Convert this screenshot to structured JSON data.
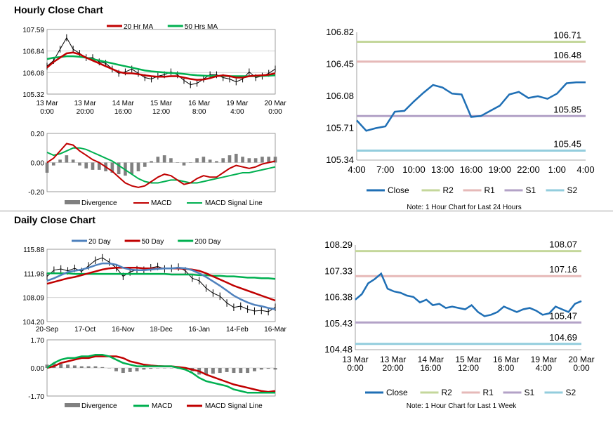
{
  "sections": {
    "hourly_title": "Hourly Close Chart",
    "daily_title": "Daily Close Chart"
  },
  "chart_data": [
    {
      "id": "hourly_price",
      "type": "line",
      "title": "",
      "legend": [
        "20 Hr MA",
        "50 Hrs MA"
      ],
      "legend_position": "top",
      "colors": {
        "price": "#000000",
        "ma20": "#c00000",
        "ma50": "#00b050"
      },
      "yticks": [
        "107.59",
        "106.84",
        "106.08",
        "105.32"
      ],
      "ylim": [
        105.32,
        107.59
      ],
      "xticks": [
        [
          "13 Mar",
          "0:00"
        ],
        [
          "13 Mar",
          "20:00"
        ],
        [
          "14 Mar",
          "16:00"
        ],
        [
          "15 Mar",
          "12:00"
        ],
        [
          "16 Mar",
          "8:00"
        ],
        [
          "19 Mar",
          "4:00"
        ],
        [
          "20 Mar",
          "0:00"
        ]
      ],
      "series": [
        {
          "name": "Close",
          "values": [
            106.3,
            106.5,
            106.9,
            107.3,
            106.9,
            106.75,
            106.6,
            106.6,
            106.45,
            106.4,
            106.2,
            106.05,
            106.1,
            106.2,
            106.05,
            105.9,
            105.85,
            105.95,
            106.0,
            106.1,
            106.0,
            105.8,
            105.65,
            105.7,
            105.85,
            106.0,
            106.0,
            105.9,
            105.85,
            105.75,
            105.85,
            106.1,
            105.9,
            105.95,
            106.05,
            106.2
          ]
        },
        {
          "name": "20 Hr MA",
          "values": [
            106.25,
            106.45,
            106.6,
            106.75,
            106.78,
            106.72,
            106.6,
            106.5,
            106.4,
            106.3,
            106.2,
            106.1,
            106.05,
            106.05,
            106.02,
            105.98,
            105.95,
            105.93,
            105.93,
            105.95,
            105.95,
            105.9,
            105.85,
            105.82,
            105.83,
            105.88,
            105.95,
            105.98,
            105.95,
            105.9,
            105.9,
            105.95,
            105.97,
            105.98,
            106.0,
            106.05
          ]
        },
        {
          "name": "50 Hrs MA",
          "values": [
            106.55,
            106.6,
            106.62,
            106.65,
            106.65,
            106.63,
            106.6,
            106.55,
            106.5,
            106.45,
            106.4,
            106.35,
            106.3,
            106.25,
            106.2,
            106.15,
            106.12,
            106.1,
            106.08,
            106.06,
            106.05,
            106.03,
            106.0,
            105.98,
            105.97,
            105.96,
            105.96,
            105.96,
            105.95,
            105.95,
            105.95,
            105.95,
            105.95,
            105.96,
            105.97,
            105.98
          ]
        }
      ]
    },
    {
      "id": "hourly_macd",
      "type": "line",
      "legend": [
        "Divergence",
        "MACD",
        "MACD Signal Line"
      ],
      "colors": {
        "div": "#808080",
        "macd": "#c00000",
        "signal": "#00b050"
      },
      "yticks": [
        "0.20",
        "0.00",
        "-0.20"
      ],
      "ylim": [
        -0.2,
        0.2
      ],
      "series": [
        {
          "name": "MACD",
          "values": [
            0.0,
            0.03,
            0.08,
            0.13,
            0.12,
            0.08,
            0.05,
            0.02,
            0.0,
            -0.03,
            -0.06,
            -0.1,
            -0.14,
            -0.16,
            -0.17,
            -0.16,
            -0.13,
            -0.1,
            -0.08,
            -0.09,
            -0.12,
            -0.15,
            -0.14,
            -0.11,
            -0.09,
            -0.1,
            -0.1,
            -0.07,
            -0.04,
            -0.02,
            -0.03,
            -0.04,
            -0.03,
            -0.01,
            0.0,
            0.01
          ]
        },
        {
          "name": "MACD Signal Line",
          "values": [
            0.07,
            0.05,
            0.06,
            0.08,
            0.1,
            0.1,
            0.09,
            0.07,
            0.05,
            0.03,
            0.01,
            -0.02,
            -0.05,
            -0.08,
            -0.11,
            -0.13,
            -0.14,
            -0.14,
            -0.13,
            -0.12,
            -0.12,
            -0.13,
            -0.14,
            -0.14,
            -0.13,
            -0.12,
            -0.11,
            -0.1,
            -0.09,
            -0.08,
            -0.07,
            -0.07,
            -0.06,
            -0.05,
            -0.04,
            -0.03
          ]
        },
        {
          "name": "Divergence",
          "values": [
            -0.07,
            -0.02,
            0.02,
            0.05,
            0.02,
            -0.02,
            -0.04,
            -0.05,
            -0.05,
            -0.06,
            -0.07,
            -0.08,
            -0.09,
            -0.08,
            -0.06,
            -0.03,
            0.01,
            0.04,
            0.05,
            0.03,
            0.0,
            -0.02,
            0.0,
            0.03,
            0.04,
            0.02,
            0.01,
            0.03,
            0.05,
            0.06,
            0.04,
            0.03,
            0.03,
            0.04,
            0.04,
            0.04
          ]
        }
      ]
    },
    {
      "id": "hourly_levels",
      "type": "line",
      "yticks": [
        "106.82",
        "106.45",
        "106.08",
        "105.71",
        "105.34"
      ],
      "ylim": [
        105.34,
        106.82
      ],
      "xticks": [
        "4:00",
        "7:00",
        "10:00",
        "13:00",
        "16:00",
        "19:00",
        "22:00",
        "1:00",
        "4:00"
      ],
      "levels": [
        {
          "name": "R2",
          "value": 106.71,
          "label": "106.71",
          "color": "#c4d79b"
        },
        {
          "name": "R1",
          "value": 106.48,
          "label": "106.48",
          "color": "#e6b9b8"
        },
        {
          "name": "S1",
          "value": 105.85,
          "label": "105.85",
          "color": "#b3a2c7"
        },
        {
          "name": "S2",
          "value": 105.45,
          "label": "105.45",
          "color": "#93cddd"
        }
      ],
      "series": [
        {
          "name": "Close",
          "color": "#1f6fb5",
          "values": [
            105.8,
            105.68,
            105.71,
            105.73,
            105.9,
            105.91,
            106.02,
            106.12,
            106.21,
            106.18,
            106.11,
            106.1,
            105.84,
            105.85,
            105.91,
            105.97,
            106.1,
            106.13,
            106.06,
            106.08,
            106.05,
            106.11,
            106.23,
            106.24,
            106.24
          ]
        }
      ],
      "legend": [
        "Close",
        "R2",
        "R1",
        "S1",
        "S2"
      ],
      "note": "Note: 1 Hour Chart for Last 24 Hours"
    },
    {
      "id": "daily_price",
      "type": "line",
      "legend": [
        "20 Day",
        "50 Day",
        "200 Day"
      ],
      "legend_position": "top",
      "colors": {
        "price": "#000000",
        "ma20": "#4f81bd",
        "ma50": "#c00000",
        "ma200": "#00b050"
      },
      "yticks": [
        "115.88",
        "111.98",
        "108.09",
        "104.20"
      ],
      "ylim": [
        104.2,
        115.88
      ],
      "xticks": [
        "20-Sep",
        "17-Oct",
        "16-Nov",
        "18-Dec",
        "16-Jan",
        "14-Feb",
        "16-Mar"
      ],
      "series": [
        {
          "name": "Close",
          "values": [
            111.5,
            112.5,
            112.7,
            112.4,
            112.8,
            112.3,
            113.2,
            114.1,
            114.5,
            113.8,
            112.9,
            111.5,
            112.2,
            112.6,
            112.5,
            112.9,
            113.1,
            112.7,
            112.8,
            113.0,
            112.4,
            111.2,
            110.8,
            109.6,
            108.8,
            108.3,
            107.2,
            106.5,
            106.7,
            106.2,
            105.9,
            106.0,
            105.8,
            106.5
          ]
        },
        {
          "name": "20 Day",
          "values": [
            110.8,
            111.2,
            111.7,
            112.2,
            112.4,
            112.6,
            112.9,
            113.3,
            113.6,
            113.6,
            113.4,
            112.9,
            112.6,
            112.5,
            112.5,
            112.6,
            112.7,
            112.8,
            112.8,
            112.9,
            112.8,
            112.5,
            112.0,
            111.4,
            110.7,
            110.0,
            109.2,
            108.4,
            107.8,
            107.3,
            106.9,
            106.7,
            106.4,
            106.2
          ]
        },
        {
          "name": "50 Day",
          "values": [
            110.3,
            110.6,
            110.9,
            111.2,
            111.4,
            111.7,
            112.0,
            112.3,
            112.6,
            112.8,
            112.9,
            112.9,
            112.9,
            112.9,
            112.8,
            112.8,
            112.8,
            112.8,
            112.8,
            112.8,
            112.7,
            112.6,
            112.4,
            112.0,
            111.5,
            111.0,
            110.5,
            110.0,
            109.6,
            109.2,
            108.8,
            108.4,
            108.0,
            107.6
          ]
        },
        {
          "name": "200 Day",
          "values": [
            112.0,
            112.0,
            112.0,
            112.0,
            111.9,
            111.9,
            111.9,
            111.9,
            111.9,
            111.9,
            111.9,
            111.9,
            111.9,
            111.9,
            111.9,
            111.9,
            111.9,
            111.9,
            111.8,
            111.8,
            111.8,
            111.8,
            111.7,
            111.7,
            111.6,
            111.6,
            111.5,
            111.5,
            111.4,
            111.3,
            111.3,
            111.2,
            111.2,
            111.1
          ]
        }
      ]
    },
    {
      "id": "daily_macd",
      "type": "line",
      "legend": [
        "Divergence",
        "MACD",
        "MACD Signal Line"
      ],
      "colors": {
        "div": "#808080",
        "macd": "#00b050",
        "signal": "#c00000"
      },
      "yticks": [
        "1.70",
        "0.00",
        "-1.70"
      ],
      "ylim": [
        -1.7,
        1.7
      ],
      "series": [
        {
          "name": "MACD",
          "values": [
            0.0,
            0.3,
            0.5,
            0.6,
            0.6,
            0.7,
            0.7,
            0.8,
            0.8,
            0.7,
            0.5,
            0.3,
            0.2,
            0.1,
            0.1,
            0.1,
            0.1,
            0.1,
            0.1,
            0.0,
            -0.1,
            -0.3,
            -0.6,
            -0.8,
            -0.9,
            -1.0,
            -1.1,
            -1.3,
            -1.4,
            -1.5,
            -1.5,
            -1.5,
            -1.5,
            -1.5
          ]
        },
        {
          "name": "MACD Signal Line",
          "values": [
            0.0,
            0.1,
            0.3,
            0.4,
            0.5,
            0.6,
            0.6,
            0.7,
            0.7,
            0.7,
            0.7,
            0.6,
            0.4,
            0.3,
            0.2,
            0.15,
            0.12,
            0.1,
            0.1,
            0.05,
            0.0,
            -0.1,
            -0.2,
            -0.4,
            -0.55,
            -0.7,
            -0.85,
            -1.0,
            -1.1,
            -1.2,
            -1.3,
            -1.4,
            -1.45,
            -1.4
          ]
        },
        {
          "name": "Divergence",
          "values": [
            0.2,
            0.3,
            0.25,
            0.2,
            0.15,
            0.1,
            0.1,
            0.1,
            0.05,
            0.0,
            -0.2,
            -0.3,
            -0.25,
            -0.2,
            -0.1,
            -0.05,
            -0.02,
            0.0,
            0.0,
            -0.05,
            -0.1,
            -0.2,
            -0.4,
            -0.4,
            -0.35,
            -0.3,
            -0.25,
            -0.3,
            -0.3,
            -0.3,
            -0.2,
            -0.1,
            -0.05,
            -0.1
          ]
        }
      ]
    },
    {
      "id": "daily_levels",
      "type": "line",
      "yticks": [
        "108.29",
        "107.33",
        "106.38",
        "105.43",
        "104.48"
      ],
      "ylim": [
        104.48,
        108.29
      ],
      "xticks": [
        [
          "13 Mar",
          "0:00"
        ],
        [
          "13 Mar",
          "20:00"
        ],
        [
          "14 Mar",
          "16:00"
        ],
        [
          "15 Mar",
          "12:00"
        ],
        [
          "16 Mar",
          "8:00"
        ],
        [
          "19 Mar",
          "4:00"
        ],
        [
          "20 Mar",
          "0:00"
        ]
      ],
      "levels": [
        {
          "name": "R2",
          "value": 108.07,
          "label": "108.07",
          "color": "#c4d79b"
        },
        {
          "name": "R1",
          "value": 107.16,
          "label": "107.16",
          "color": "#e6b9b8"
        },
        {
          "name": "S1",
          "value": 105.47,
          "label": "105.47",
          "color": "#b3a2c7"
        },
        {
          "name": "S2",
          "value": 104.69,
          "label": "104.69",
          "color": "#93cddd"
        }
      ],
      "series": [
        {
          "name": "Close",
          "color": "#1f6fb5",
          "values": [
            106.3,
            106.5,
            106.9,
            107.05,
            107.25,
            106.7,
            106.6,
            106.55,
            106.45,
            106.4,
            106.2,
            106.3,
            106.1,
            106.15,
            106.0,
            106.05,
            106.0,
            105.95,
            106.1,
            105.85,
            105.7,
            105.75,
            105.85,
            106.05,
            105.95,
            105.85,
            105.95,
            106.0,
            105.9,
            105.75,
            105.8,
            106.05,
            105.95,
            105.85,
            106.15,
            106.25
          ]
        }
      ],
      "legend": [
        "Close",
        "R2",
        "R1",
        "S1",
        "S2"
      ],
      "note": "Note: 1 Hour Chart for Last 1 Week"
    }
  ]
}
